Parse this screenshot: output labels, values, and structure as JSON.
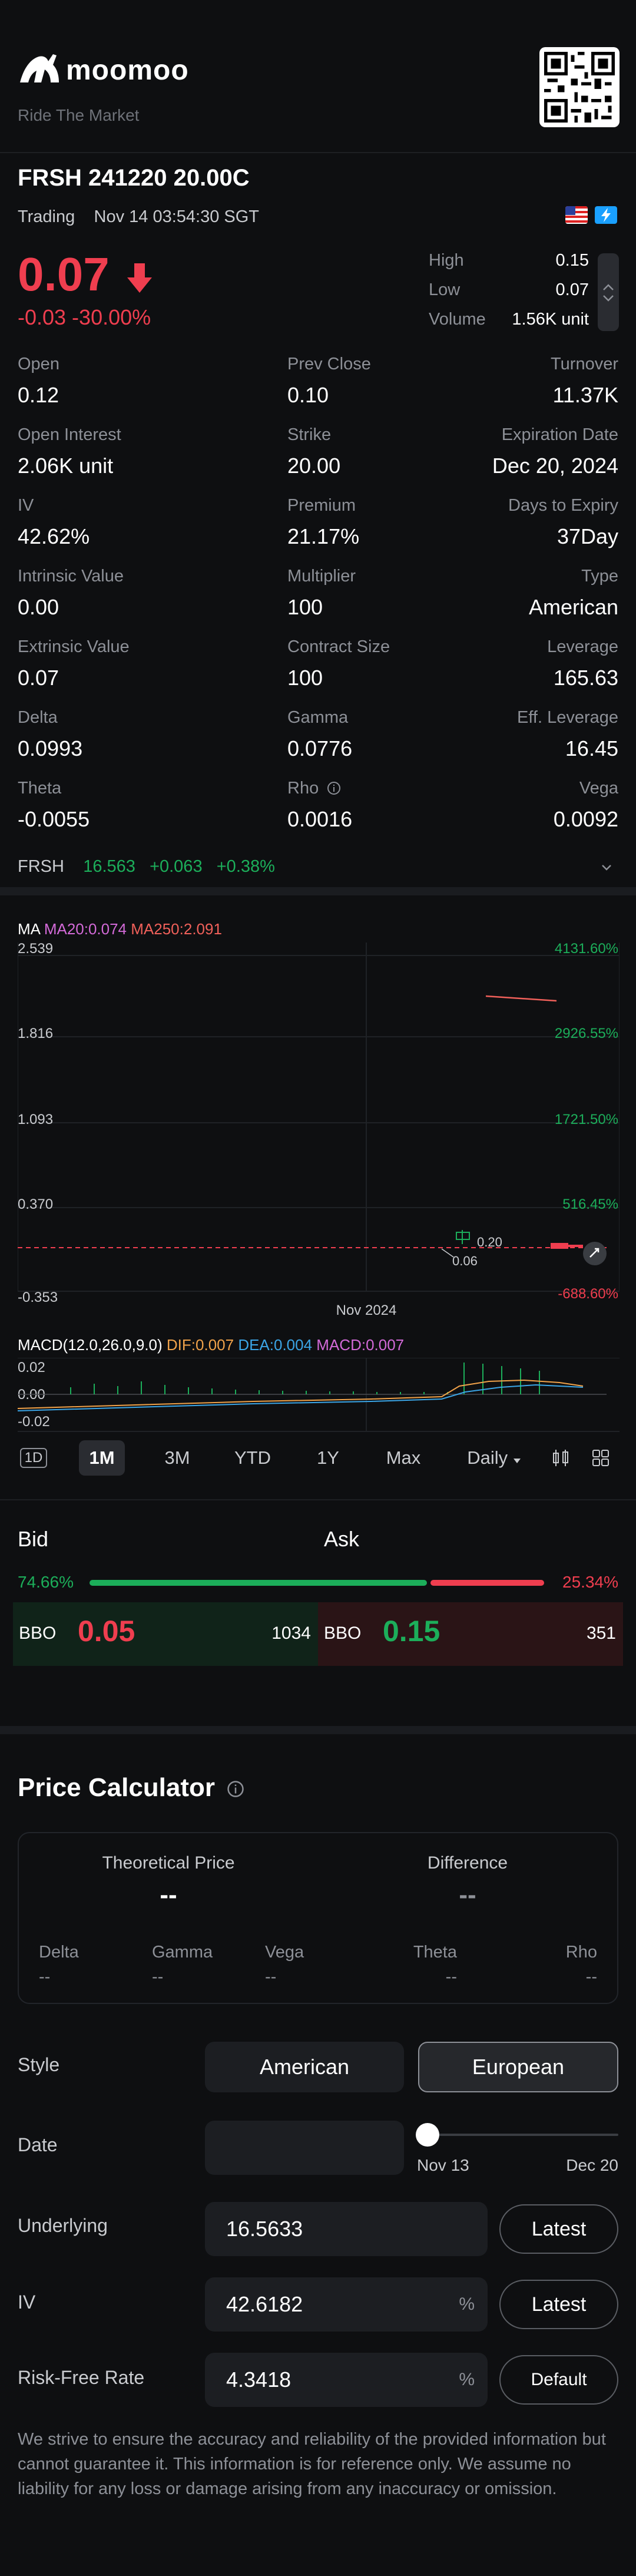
{
  "header": {
    "logo": "moomoo",
    "tagline": "Ride The Market"
  },
  "quote": {
    "symbol": "FRSH 241220 20.00C",
    "status": "Trading",
    "time": "Nov 14 03:54:30 SGT",
    "price": "0.07",
    "change": "-0.03 -30.00%",
    "high_label": "High",
    "high": "0.15",
    "low_label": "Low",
    "low": "0.07",
    "volume_label": "Volume",
    "volume": "1.56K unit"
  },
  "stats": [
    [
      {
        "label": "Open",
        "value": "0.12"
      },
      {
        "label": "Prev Close",
        "value": "0.10"
      },
      {
        "label": "Turnover",
        "value": "11.37K"
      }
    ],
    [
      {
        "label": "Open Interest",
        "value": "2.06K unit"
      },
      {
        "label": "Strike",
        "value": "20.00"
      },
      {
        "label": "Expiration Date",
        "value": "Dec 20, 2024"
      }
    ],
    [
      {
        "label": "IV",
        "value": "42.62%"
      },
      {
        "label": "Premium",
        "value": "21.17%"
      },
      {
        "label": "Days to Expiry",
        "value": "37Day"
      }
    ],
    [
      {
        "label": "Intrinsic Value",
        "value": "0.00"
      },
      {
        "label": "Multiplier",
        "value": "100"
      },
      {
        "label": "Type",
        "value": "American"
      }
    ],
    [
      {
        "label": "Extrinsic Value",
        "value": "0.07"
      },
      {
        "label": "Contract Size",
        "value": "100"
      },
      {
        "label": "Leverage",
        "value": "165.63"
      }
    ],
    [
      {
        "label": "Delta",
        "value": "0.0993"
      },
      {
        "label": "Gamma",
        "value": "0.0776"
      },
      {
        "label": "Eff. Leverage",
        "value": "16.45"
      }
    ],
    [
      {
        "label": "Theta",
        "value": "-0.0055"
      },
      {
        "label": "Rho",
        "value": "0.0016"
      },
      {
        "label": "Vega",
        "value": "0.0092"
      }
    ]
  ],
  "underlying": {
    "symbol": "FRSH",
    "price": "16.563",
    "change": "+0.063",
    "pct": "+0.38%"
  },
  "chart": {
    "ma_label": "MA",
    "ma20": "MA20:0.074",
    "ma250": "MA250:2.091",
    "y_left": [
      "2.539",
      "1.816",
      "1.093",
      "0.370",
      "-0.353"
    ],
    "y_right": [
      "4131.60%",
      "2926.55%",
      "1721.50%",
      "516.45%",
      "-688.60%"
    ],
    "x_label": "Nov 2024",
    "low_marker": "0.06",
    "high_marker": "0.20",
    "macd_label": "MACD(12.0,26.0,9.0)",
    "dif": "DIF:0.007",
    "dea": "DEA:0.004",
    "macd": "MACD:0.007",
    "macd_y": [
      "0.02",
      "0.00",
      "-0.02"
    ]
  },
  "chart_data": {
    "type": "line",
    "title": "",
    "xlabel": "Nov 2024",
    "ylabel": "",
    "ylim": [
      -0.353,
      2.539
    ],
    "series": [
      {
        "name": "MA250",
        "values": [
          2.12,
          2.091
        ]
      },
      {
        "name": "MA20",
        "values": [
          0.074
        ]
      }
    ]
  },
  "tabs": [
    "1D",
    "1M",
    "3M",
    "YTD",
    "1Y",
    "Max",
    "Daily"
  ],
  "tab_active": "1M",
  "bidask": {
    "bid_label": "Bid",
    "ask_label": "Ask",
    "bid_pct": "74.66%",
    "ask_pct": "25.34%",
    "bid_fraction": 0.7466,
    "bbo": "BBO",
    "bid_price": "0.05",
    "bid_size": "1034",
    "ask_price": "0.15",
    "ask_size": "351"
  },
  "calculator": {
    "title": "Price Calculator",
    "theoretical_label": "Theoretical Price",
    "theoretical_value": "--",
    "difference_label": "Difference",
    "difference_value": "--",
    "greeks": [
      {
        "label": "Delta",
        "value": "--"
      },
      {
        "label": "Gamma",
        "value": "--"
      },
      {
        "label": "Vega",
        "value": "--"
      },
      {
        "label": "Theta",
        "value": "--"
      },
      {
        "label": "Rho",
        "value": "--"
      }
    ],
    "style_label": "Style",
    "style_american": "American",
    "style_european": "European",
    "date_label": "Date",
    "date_start": "Nov 13",
    "date_end": "Dec 20",
    "underlying_label": "Underlying",
    "underlying_value": "16.5633",
    "latest": "Latest",
    "iv_label": "IV",
    "iv_value": "42.6182",
    "percent": "%",
    "rfr_label": "Risk-Free Rate",
    "rfr_value": "4.3418",
    "default": "Default"
  },
  "disclaimer": "We strive to ensure the accuracy and reliability of the provided information but cannot guarantee it. This information is for reference only. We assume no liability for any loss or damage arising from any inaccuracy or omission."
}
